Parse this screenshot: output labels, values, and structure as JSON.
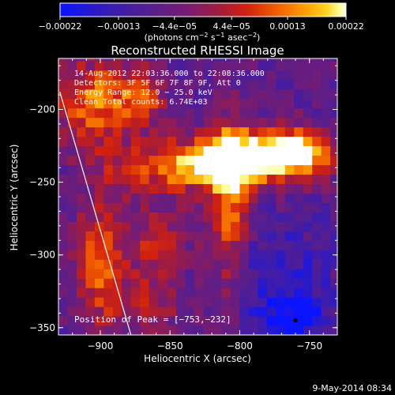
{
  "chart_data": {
    "type": "heatmap",
    "title": "Reconstructed RHESSI Image",
    "xlabel": "Heliocentric X (arcsec)",
    "ylabel": "Heliocentric Y (arcsec)",
    "xlim": [
      -930,
      -730
    ],
    "ylim": [
      -355,
      -165
    ],
    "xticks": [
      {
        "value": -900,
        "label": "−900"
      },
      {
        "value": -850,
        "label": "−850"
      },
      {
        "value": -800,
        "label": "−800"
      },
      {
        "value": -750,
        "label": "−750"
      }
    ],
    "yticks": [
      {
        "value": -200,
        "label": "−200"
      },
      {
        "value": -250,
        "label": "−250"
      },
      {
        "value": -300,
        "label": "−300"
      },
      {
        "value": -350,
        "label": "−350"
      }
    ],
    "colorbar": {
      "min": -0.00022,
      "max": 0.00022,
      "ticks": [
        {
          "value": -0.00022,
          "label": "−0.00022"
        },
        {
          "value": -0.00013,
          "label": "−0.00013"
        },
        {
          "value": -4.4e-05,
          "label": "−4.4e−05"
        },
        {
          "value": 4.4e-05,
          "label": "4.4e−05"
        },
        {
          "value": 0.00013,
          "label": "0.00013"
        },
        {
          "value": 0.00022,
          "label": "0.00022"
        }
      ],
      "unit_parts": [
        "(photons cm",
        "−2",
        " s",
        "−1",
        " asec",
        "−2",
        ")"
      ]
    },
    "info_lines": [
      "14-Aug-2012 22:03:36.000 to 22:08:36.000",
      "Detectors: 3F 5F 6F 7F 8F 9F, Att 0",
      "Energy Range: 12.0 − 25.0 keV",
      "Clean    Total counts: 6.74E+03"
    ],
    "peak_label": "Position of Peak = [−753,−232]",
    "peak": [
      -753,
      -232
    ],
    "limb_line": [
      [
        -929,
        -188
      ],
      [
        -878,
        -355
      ]
    ],
    "timestamp": "9-May-2014 08:34",
    "colors": {
      "colormap": [
        "#0a14ff",
        "#3a1cb0",
        "#5a1e8a",
        "#7a1c70",
        "#a01c40",
        "#d02010",
        "#f05a00",
        "#ff9a00",
        "#ffd020",
        "#ffffa0",
        "#ffffff"
      ],
      "background": "#000000",
      "foreground": "#ffffff"
    }
  }
}
